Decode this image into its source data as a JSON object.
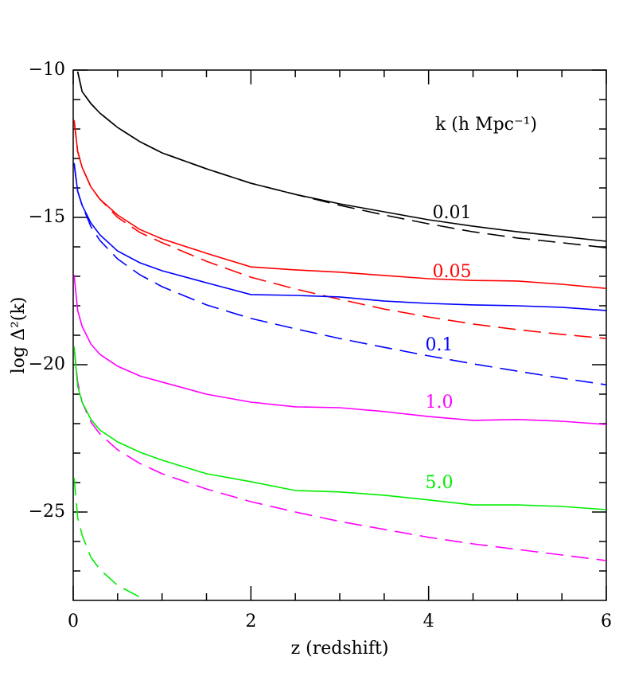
{
  "chart_data": {
    "type": "line",
    "x_label": "z (redshift)",
    "y_label": "log Δ²(k)",
    "xlim": [
      0,
      6
    ],
    "ylim": [
      -28,
      -10
    ],
    "xticks": [
      0,
      2,
      4,
      6
    ],
    "xminorticks": [
      0.5,
      1,
      1.5,
      2.5,
      3,
      3.5,
      4.5,
      5,
      5.5
    ],
    "yticks": [
      {
        "value": -10,
        "label": "−10"
      },
      {
        "value": -15,
        "label": "−15"
      },
      {
        "value": -20,
        "label": "−20"
      },
      {
        "value": -25,
        "label": "−25"
      }
    ],
    "yminorticks": [
      -11,
      -12,
      -13,
      -14,
      -16,
      -17,
      -18,
      -19,
      -21,
      -22,
      -23,
      -24,
      -26,
      -27
    ],
    "x": [
      0.01,
      0.05,
      0.1,
      0.2,
      0.3,
      0.5,
      0.75,
      1,
      1.5,
      2,
      2.5,
      3,
      3.5,
      4,
      4.5,
      5,
      5.5,
      6
    ],
    "series": [
      {
        "color": "#000000",
        "style": "solid",
        "values": [
          null,
          -10.05,
          -10.73,
          -11.14,
          -11.46,
          -11.95,
          -12.43,
          -12.81,
          -13.35,
          -13.84,
          -14.22,
          -14.54,
          -14.81,
          -15.08,
          -15.3,
          -15.49,
          -15.65,
          -15.81
        ]
      },
      {
        "color": "#000000",
        "style": "dashed",
        "values": [
          null,
          -10.05,
          -10.73,
          -11.14,
          -11.46,
          -11.95,
          -12.43,
          -12.81,
          -13.35,
          -13.84,
          -14.22,
          -14.59,
          -14.92,
          -15.22,
          -15.49,
          -15.7,
          -15.86,
          -16.03
        ]
      },
      {
        "color": "#ff0000",
        "style": "solid",
        "values": [
          -11.7,
          -12.76,
          -13.3,
          -13.97,
          -14.38,
          -14.92,
          -15.41,
          -15.73,
          -16.22,
          -16.68,
          -16.78,
          -16.86,
          -16.97,
          -17.08,
          -17.14,
          -17.16,
          -17.27,
          -17.41
        ]
      },
      {
        "color": "#ff0000",
        "style": "dashed",
        "values": [
          -11.7,
          -12.76,
          -13.3,
          -13.97,
          -14.38,
          -15.0,
          -15.51,
          -15.86,
          -16.49,
          -17.03,
          -17.43,
          -17.78,
          -18.11,
          -18.38,
          -18.62,
          -18.81,
          -18.97,
          -19.11
        ]
      },
      {
        "color": "#0000ff",
        "style": "solid",
        "values": [
          -13.16,
          -14.11,
          -14.59,
          -15.19,
          -15.59,
          -16.14,
          -16.54,
          -16.81,
          -17.22,
          -17.62,
          -17.65,
          -17.7,
          -17.84,
          -17.92,
          -17.97,
          -18.0,
          -18.05,
          -18.16
        ]
      },
      {
        "color": "#0000ff",
        "style": "dashed",
        "values": [
          -13.16,
          -14.11,
          -14.59,
          -15.32,
          -15.78,
          -16.41,
          -16.95,
          -17.35,
          -17.97,
          -18.43,
          -18.78,
          -19.11,
          -19.41,
          -19.7,
          -19.97,
          -20.22,
          -20.46,
          -20.68
        ]
      },
      {
        "color": "#ff00ff",
        "style": "solid",
        "values": [
          -16.95,
          -18.16,
          -18.7,
          -19.3,
          -19.65,
          -20.05,
          -20.38,
          -20.59,
          -21.0,
          -21.27,
          -21.43,
          -21.46,
          -21.59,
          -21.76,
          -21.89,
          -21.86,
          -21.92,
          -22.03
        ]
      },
      {
        "color": "#ff00ff",
        "style": "dashed",
        "values": [
          -19.38,
          -20.59,
          -21.27,
          -21.95,
          -22.35,
          -22.89,
          -23.35,
          -23.7,
          -24.22,
          -24.65,
          -25.0,
          -25.32,
          -25.59,
          -25.86,
          -26.08,
          -26.27,
          -26.46,
          -26.65
        ]
      },
      {
        "color": "#00ee00",
        "style": "solid",
        "values": [
          -19.38,
          -20.73,
          -21.27,
          -21.86,
          -22.22,
          -22.62,
          -22.97,
          -23.24,
          -23.7,
          -23.97,
          -24.27,
          -24.32,
          -24.43,
          -24.59,
          -24.76,
          -24.76,
          -24.81,
          -24.92
        ]
      },
      {
        "color": "#00ee00",
        "style": "dashed",
        "values": [
          -23.84,
          -25.19,
          -25.78,
          -26.54,
          -26.95,
          -27.49,
          -27.89,
          null,
          null,
          null,
          null,
          null,
          null,
          null,
          null,
          null,
          null,
          null
        ]
      }
    ],
    "annotations": [
      {
        "text": "k (h Mpc⁻¹)",
        "color": "#000000"
      },
      {
        "text": "0.01",
        "color": "#000000"
      },
      {
        "text": "0.05",
        "color": "#ff0000"
      },
      {
        "text": "0.1",
        "color": "#0000ff"
      },
      {
        "text": "1.0",
        "color": "#ff00ff"
      },
      {
        "text": "5.0",
        "color": "#00ee00"
      }
    ]
  }
}
